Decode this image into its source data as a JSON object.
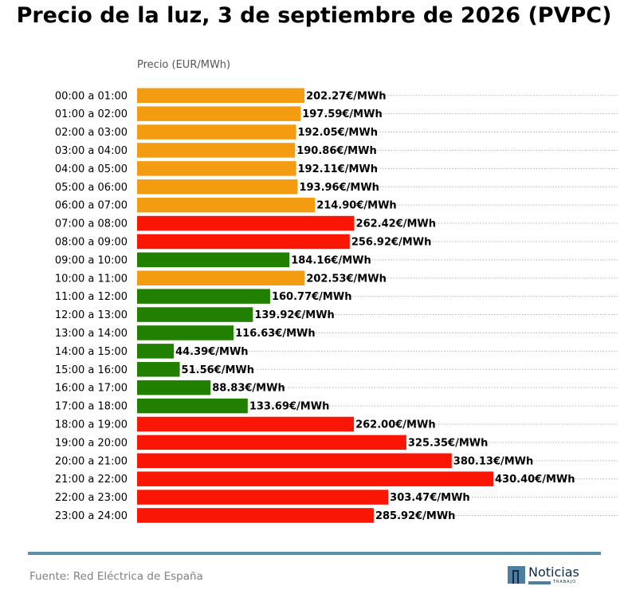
{
  "title": "Precio de la luz, 3 de septiembre de 2026 (PVPC)",
  "footer": {
    "source": "Fuente: Red Eléctrica de España",
    "logo_word": "Noticias",
    "logo_sub": "TRABAJO"
  },
  "colors": {
    "high": "#fa1605",
    "medium": "#f39c12",
    "low": "#218000",
    "grid": "#b5b5b5",
    "footer_line": "#5d8fa8"
  },
  "chart_data": {
    "type": "bar",
    "orientation": "horizontal",
    "xlabel": "Precio (EUR/MWh)",
    "value_suffix": "€/MWh",
    "grid": "dotted horizontal lines",
    "categories": [
      "00:00 a 01:00",
      "01:00 a 02:00",
      "02:00 a 03:00",
      "03:00 a 04:00",
      "04:00 a 05:00",
      "05:00 a 06:00",
      "06:00 a 07:00",
      "07:00 a 08:00",
      "08:00 a 09:00",
      "09:00 a 10:00",
      "10:00 a 11:00",
      "11:00 a 12:00",
      "12:00 a 13:00",
      "13:00 a 14:00",
      "14:00 a 15:00",
      "15:00 a 16:00",
      "16:00 a 17:00",
      "17:00 a 18:00",
      "18:00 a 19:00",
      "19:00 a 20:00",
      "20:00 a 21:00",
      "21:00 a 22:00",
      "22:00 a 23:00",
      "23:00 a 24:00"
    ],
    "values": [
      202.27,
      197.59,
      192.05,
      190.86,
      192.11,
      193.96,
      214.9,
      262.42,
      256.92,
      184.16,
      202.53,
      160.77,
      139.92,
      116.63,
      44.39,
      51.56,
      88.83,
      133.69,
      262.0,
      325.35,
      380.13,
      430.4,
      303.47,
      285.92
    ],
    "value_labels": [
      "202.27€/MWh",
      "197.59€/MWh",
      "192.05€/MWh",
      "190.86€/MWh",
      "192.11€/MWh",
      "193.96€/MWh",
      "214.90€/MWh",
      "262.42€/MWh",
      "256.92€/MWh",
      "184.16€/MWh",
      "202.53€/MWh",
      "160.77€/MWh",
      "139.92€/MWh",
      "116.63€/MWh",
      "44.39€/MWh",
      "51.56€/MWh",
      "88.83€/MWh",
      "133.69€/MWh",
      "262.00€/MWh",
      "325.35€/MWh",
      "380.13€/MWh",
      "430.40€/MWh",
      "303.47€/MWh",
      "285.92€/MWh"
    ],
    "bar_levels": [
      "medium",
      "medium",
      "medium",
      "medium",
      "medium",
      "medium",
      "medium",
      "high",
      "high",
      "low",
      "medium",
      "low",
      "low",
      "low",
      "low",
      "low",
      "low",
      "low",
      "high",
      "high",
      "high",
      "high",
      "high",
      "high"
    ],
    "xlim": [
      0,
      430.4
    ]
  }
}
